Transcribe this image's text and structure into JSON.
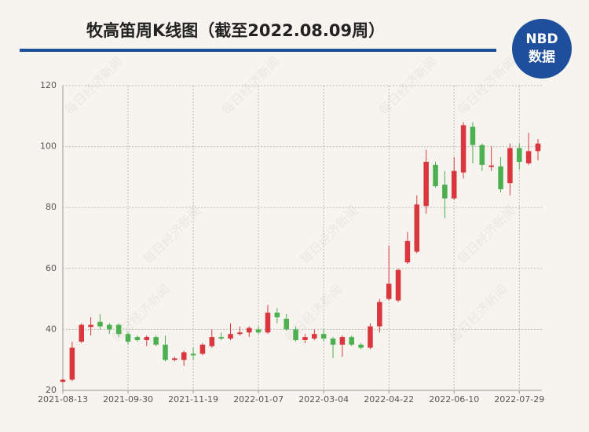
{
  "chart_data": {
    "type": "candlestick",
    "title": "牧高笛周K线图（截至2022.08.09周）",
    "logo": {
      "top": "NBD",
      "bottom": "数据"
    },
    "watermark": "每日经济新闻",
    "categories": [
      "2021-08-13",
      null,
      null,
      null,
      null,
      null,
      null,
      "2021-09-30",
      null,
      null,
      null,
      null,
      null,
      null,
      "2021-11-19",
      null,
      null,
      null,
      null,
      null,
      null,
      "2022-01-07",
      null,
      null,
      null,
      null,
      null,
      null,
      "2022-03-04",
      null,
      null,
      null,
      null,
      null,
      null,
      "2022-04-22",
      null,
      null,
      null,
      null,
      null,
      null,
      "2022-06-10",
      null,
      null,
      null,
      null,
      null,
      null,
      "2022-07-29",
      null,
      null
    ],
    "open": [
      22.8,
      23.5,
      36,
      40.8,
      42.5,
      41.5,
      41.5,
      38.5,
      37.5,
      36.5,
      37.5,
      35,
      30,
      30,
      32,
      32,
      34.5,
      37.5,
      37,
      38.5,
      39,
      40,
      39,
      45.5,
      43.5,
      40,
      36.5,
      37,
      38.5,
      37,
      35,
      37.5,
      35,
      34,
      41,
      50,
      49.5,
      62,
      65.5,
      80.5,
      94,
      87.5,
      83,
      91.5,
      106.5,
      100.5,
      93.3,
      93.5,
      88,
      99.5,
      94.5,
      98.5
    ],
    "high": [
      23.8,
      36,
      42,
      44,
      45,
      42,
      42,
      39,
      38,
      38,
      38,
      38,
      31,
      33,
      34,
      35.5,
      40,
      39,
      42,
      41,
      41,
      41,
      48,
      47,
      45,
      41,
      38.5,
      40,
      40,
      37.5,
      38,
      38,
      35.5,
      42,
      50,
      67.5,
      60,
      72,
      84,
      99,
      95,
      92,
      96.5,
      108,
      108,
      101,
      100,
      96.5,
      101,
      101,
      104.5,
      102.5
    ],
    "low": [
      22.5,
      23,
      35.5,
      38,
      40,
      38.5,
      37.5,
      35,
      36,
      34.5,
      34.5,
      29.5,
      29.5,
      28,
      30,
      31.5,
      34,
      36.5,
      36.5,
      38,
      37.5,
      38.5,
      38.5,
      42,
      39.5,
      36,
      35.5,
      36.5,
      36,
      30.5,
      31,
      34.5,
      33.5,
      33.5,
      39,
      49.5,
      49,
      61.5,
      65,
      78,
      86.5,
      76.5,
      82.5,
      89.5,
      94.5,
      92,
      92,
      85,
      84,
      92.5,
      94,
      95.5
    ],
    "close": [
      23.5,
      34,
      41.5,
      41.5,
      41,
      40,
      38.5,
      36,
      36.5,
      37.5,
      35,
      30,
      30.5,
      32.5,
      31.5,
      35,
      37.5,
      37,
      38.5,
      39,
      40.5,
      39,
      45.5,
      44,
      40,
      36.5,
      37.5,
      38.5,
      37,
      35,
      37.5,
      35,
      34,
      41,
      49,
      55,
      59.5,
      69,
      81,
      95,
      87,
      83,
      92,
      107,
      100.5,
      94,
      93.8,
      86,
      99.5,
      95,
      98.5,
      101
    ],
    "up_color": "#d9363e",
    "down_color": "#4caf50",
    "ylim": [
      20,
      120
    ],
    "yticks": [
      20,
      40,
      60,
      80,
      100,
      120
    ],
    "grid": true
  }
}
